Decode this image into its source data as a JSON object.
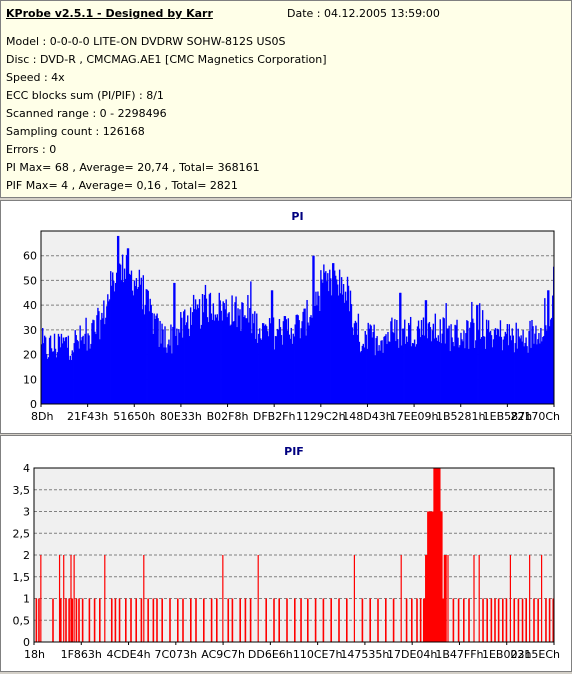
{
  "header": {
    "title": "KProbe v2.5.1 - Designed by Karr",
    "date": "Date : 04.12.2005 13:59:00",
    "lines": [
      "Model : 0-0-0-0 LITE-ON DVDRW SOHW-812S  US0S",
      "Disc : DVD-R , CMCMAG.AE1 [CMC Magnetics Corporation]",
      "Speed : 4x",
      "ECC blocks sum (PI/PIF) : 8/1",
      "Scanned range : 0 - 2298496",
      "Sampling count : 126168",
      "Errors : 0",
      "PI Max= 68 , Average= 20,74 , Total= 368161",
      "PIF Max= 4 , Average= 0,16 , Total= 2821"
    ]
  },
  "chart_data": [
    {
      "type": "area",
      "title": "PI",
      "ylim": [
        0,
        70
      ],
      "yticks": [
        "0",
        "10",
        "20",
        "30",
        "40",
        "50",
        "60"
      ],
      "xticks": [
        "8Dh",
        "21F43h",
        "51650h",
        "80E33h",
        "B02F8h",
        "DFB2Fh",
        "1129C2h",
        "148D43h",
        "17EE09h",
        "1B5281h",
        "1EB587h",
        "22170Ch"
      ],
      "grid": true,
      "color": "#0000ff",
      "profile_x": [
        0,
        0.04,
        0.09,
        0.12,
        0.14,
        0.16,
        0.19,
        0.23,
        0.25,
        0.29,
        0.33,
        0.37,
        0.41,
        0.44,
        0.47,
        0.51,
        0.55,
        0.58,
        0.6,
        0.61,
        0.63,
        0.66,
        0.7,
        0.75,
        0.8,
        0.85,
        0.9,
        0.94,
        0.97,
        1.0
      ],
      "profile_y": [
        22,
        24,
        26,
        35,
        50,
        55,
        48,
        28,
        26,
        34,
        40,
        38,
        34,
        28,
        30,
        32,
        47,
        49,
        45,
        28,
        26,
        27,
        29,
        31,
        28,
        29,
        28,
        26,
        30,
        40
      ],
      "peaks": [
        [
          0.15,
          68
        ],
        [
          0.168,
          63
        ],
        [
          0.45,
          46
        ],
        [
          0.53,
          60
        ],
        [
          0.57,
          57
        ],
        [
          0.26,
          49
        ],
        [
          0.7,
          45
        ],
        [
          0.75,
          42
        ],
        [
          0.85,
          40
        ],
        [
          0.99,
          46
        ]
      ],
      "sample_count": 520
    },
    {
      "type": "bar",
      "title": "PIF",
      "ylim": [
        0,
        4
      ],
      "yticks": [
        "0",
        "0,5",
        "1",
        "1,5",
        "2",
        "2,5",
        "3",
        "3,5",
        "4"
      ],
      "xticks": [
        "18h",
        "1F863h",
        "4CDE4h",
        "7C073h",
        "AC9C7h",
        "DD6E6h",
        "110CE7h",
        "147535h",
        "17DE04h",
        "1B47FFh",
        "1EB003h",
        "2215ECh"
      ],
      "grid": true,
      "color": "#ff0000",
      "x": [
        0.003,
        0.008,
        0.012,
        0.035,
        0.048,
        0.05,
        0.056,
        0.06,
        0.066,
        0.07,
        0.072,
        0.076,
        0.08,
        0.085,
        0.092,
        0.105,
        0.115,
        0.125,
        0.135,
        0.148,
        0.155,
        0.163,
        0.175,
        0.185,
        0.195,
        0.205,
        0.21,
        0.218,
        0.228,
        0.235,
        0.245,
        0.26,
        0.275,
        0.285,
        0.3,
        0.31,
        0.325,
        0.34,
        0.35,
        0.362,
        0.372,
        0.38,
        0.395,
        0.405,
        0.415,
        0.43,
        0.445,
        0.46,
        0.47,
        0.485,
        0.5,
        0.512,
        0.525,
        0.54,
        0.555,
        0.57,
        0.585,
        0.6,
        0.615,
        0.63,
        0.645,
        0.66,
        0.675,
        0.69,
        0.705,
        0.715,
        0.725,
        0.735,
        0.742,
        0.748,
        0.752,
        0.756,
        0.76,
        0.764,
        0.768,
        0.772,
        0.776,
        0.78,
        0.784,
        0.788,
        0.795,
        0.805,
        0.815,
        0.825,
        0.835,
        0.845,
        0.855,
        0.862,
        0.87,
        0.878,
        0.885,
        0.892,
        0.9,
        0.907,
        0.915,
        0.922,
        0.93,
        0.938,
        0.945,
        0.952,
        0.96,
        0.968,
        0.975,
        0.983,
        0.99,
        0.997
      ],
      "values": [
        1,
        1,
        2,
        1,
        2,
        1,
        2,
        1,
        1,
        2,
        1,
        2,
        1,
        1,
        1,
        1,
        1,
        1,
        2,
        1,
        1,
        1,
        1,
        1,
        1,
        1,
        2,
        1,
        1,
        1,
        1,
        1,
        1,
        1,
        1,
        1,
        1,
        1,
        1,
        2,
        1,
        1,
        1,
        1,
        1,
        2,
        1,
        1,
        1,
        1,
        1,
        1,
        1,
        1,
        1,
        1,
        1,
        1,
        2,
        1,
        1,
        1,
        1,
        1,
        2,
        1,
        1,
        1,
        1,
        1,
        2,
        3,
        3,
        3,
        4,
        4,
        4,
        3,
        1,
        2,
        2,
        1,
        1,
        1,
        1,
        2,
        2,
        1,
        1,
        1,
        1,
        1,
        1,
        1,
        2,
        1,
        1,
        1,
        1,
        2,
        1,
        1,
        2,
        1,
        1,
        1
      ],
      "sample_count": 520
    }
  ]
}
